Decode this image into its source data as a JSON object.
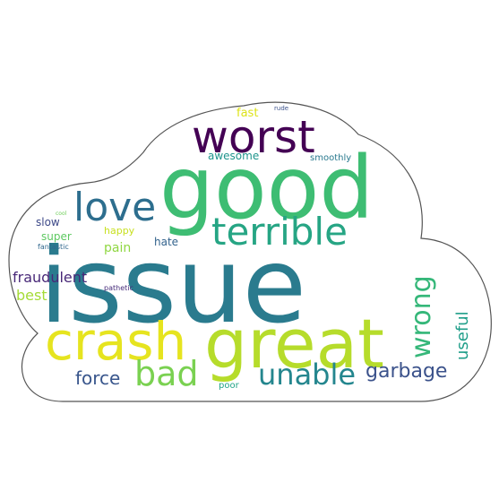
{
  "words": [
    {
      "text": "issue",
      "color": "#2a7b8e"
    },
    {
      "text": "good",
      "color": "#3ebd73"
    },
    {
      "text": "great",
      "color": "#b6dc2b"
    },
    {
      "text": "crash",
      "color": "#e6e41f"
    },
    {
      "text": "worst",
      "color": "#440154"
    },
    {
      "text": "terrible",
      "color": "#26a584"
    },
    {
      "text": "love",
      "color": "#2d6e8e"
    },
    {
      "text": "bad",
      "color": "#7ad151"
    },
    {
      "text": "unable",
      "color": "#24868e"
    },
    {
      "text": "wrong",
      "color": "#35b779"
    },
    {
      "text": "garbage",
      "color": "#3b528b"
    },
    {
      "text": "force",
      "color": "#39568c"
    },
    {
      "text": "useful",
      "color": "#1f9e89"
    },
    {
      "text": "fraudulent",
      "color": "#482878"
    },
    {
      "text": "best",
      "color": "#a5db36"
    },
    {
      "text": "slow",
      "color": "#3e4a89"
    },
    {
      "text": "super",
      "color": "#5ec962"
    },
    {
      "text": "pain",
      "color": "#90d743"
    },
    {
      "text": "hate",
      "color": "#33638d"
    },
    {
      "text": "happy",
      "color": "#c8e020"
    },
    {
      "text": "awesome",
      "color": "#1f948c"
    },
    {
      "text": "smoothly",
      "color": "#29798e"
    },
    {
      "text": "fast",
      "color": "#dde318"
    },
    {
      "text": "rude",
      "color": "#3b528b"
    },
    {
      "text": "fantastic",
      "color": "#31688e"
    },
    {
      "text": "pathetic",
      "color": "#472d7b"
    },
    {
      "text": "poor",
      "color": "#20a386"
    },
    {
      "text": "cool",
      "color": "#6ece58"
    }
  ]
}
